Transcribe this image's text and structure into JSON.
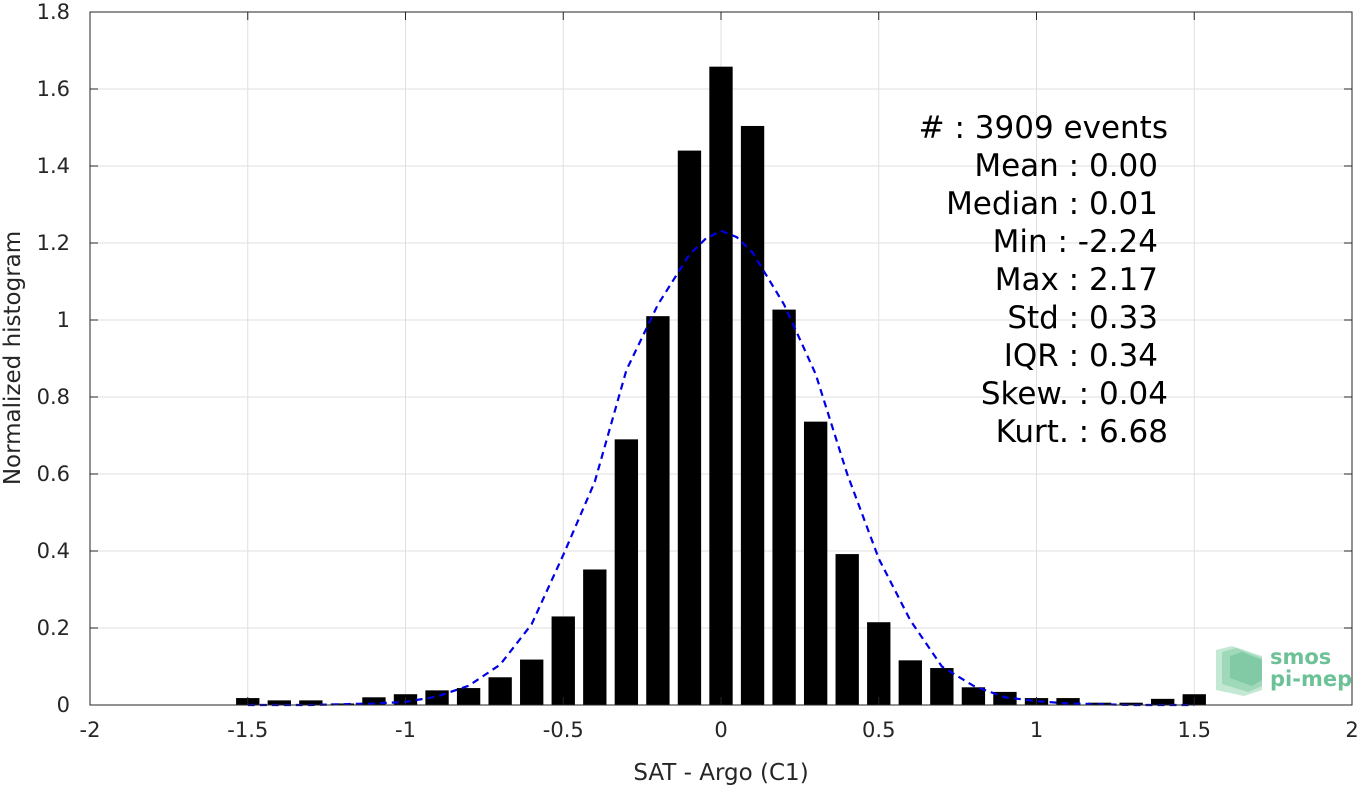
{
  "chart_data": {
    "type": "bar",
    "title": "",
    "xlabel": "SAT - Argo (C1)",
    "ylabel": "Normalized histogram",
    "xlim": [
      -2,
      2
    ],
    "ylim": [
      0,
      1.8
    ],
    "grid": true,
    "x_ticks": [
      "-2",
      "-1.5",
      "-1",
      "-0.5",
      "0",
      "0.5",
      "1",
      "1.5",
      "2"
    ],
    "y_ticks": [
      "0",
      "0.2",
      "0.4",
      "0.6",
      "0.8",
      "1",
      "1.2",
      "1.4",
      "1.6",
      "1.8"
    ],
    "bar_color": "#000000",
    "bars": {
      "x": [
        -1.5,
        -1.4,
        -1.3,
        -1.2,
        -1.1,
        -1.0,
        -0.9,
        -0.8,
        -0.7,
        -0.6,
        -0.5,
        -0.4,
        -0.3,
        -0.2,
        -0.1,
        0.0,
        0.1,
        0.2,
        0.3,
        0.4,
        0.5,
        0.6,
        0.7,
        0.8,
        0.9,
        1.0,
        1.1,
        1.2,
        1.3,
        1.4,
        1.5
      ],
      "values": [
        0.018,
        0.012,
        0.012,
        0.004,
        0.02,
        0.028,
        0.038,
        0.044,
        0.072,
        0.118,
        0.23,
        0.352,
        0.69,
        1.01,
        1.44,
        1.658,
        1.504,
        1.027,
        0.736,
        0.392,
        0.215,
        0.116,
        0.096,
        0.046,
        0.034,
        0.018,
        0.018,
        0.006,
        0.006,
        0.016,
        0.028
      ]
    },
    "normal_fit": {
      "style": "dashed",
      "color": "#0000e6",
      "x": [
        -1.5,
        -1.4,
        -1.3,
        -1.2,
        -1.1,
        -1.0,
        -0.9,
        -0.8,
        -0.7,
        -0.6,
        -0.5,
        -0.4,
        -0.3,
        -0.2,
        -0.1,
        -0.05,
        0.0,
        0.05,
        0.1,
        0.2,
        0.3,
        0.4,
        0.5,
        0.6,
        0.7,
        0.8,
        0.9,
        1.0,
        1.1,
        1.2,
        1.3,
        1.4,
        1.5
      ],
      "y": [
        0.0,
        0.0,
        0.0,
        0.002,
        0.004,
        0.008,
        0.022,
        0.05,
        0.105,
        0.21,
        0.39,
        0.58,
        0.87,
        1.04,
        1.17,
        1.21,
        1.232,
        1.215,
        1.175,
        1.04,
        0.86,
        0.6,
        0.38,
        0.22,
        0.1,
        0.05,
        0.02,
        0.01,
        0.004,
        0.002,
        0.0,
        0.0,
        0.0
      ]
    },
    "stats": [
      "#  : 3909 events",
      "Mean : 0.00",
      "Median : 0.01",
      "Min : -2.24",
      "Max : 2.17",
      "Std : 0.33",
      "IQR : 0.34",
      "Skew. : 0.04",
      "Kurt. : 6.68"
    ]
  },
  "logo": {
    "line1": "smos",
    "line2": "pi-mep",
    "color": "#6cc196"
  }
}
